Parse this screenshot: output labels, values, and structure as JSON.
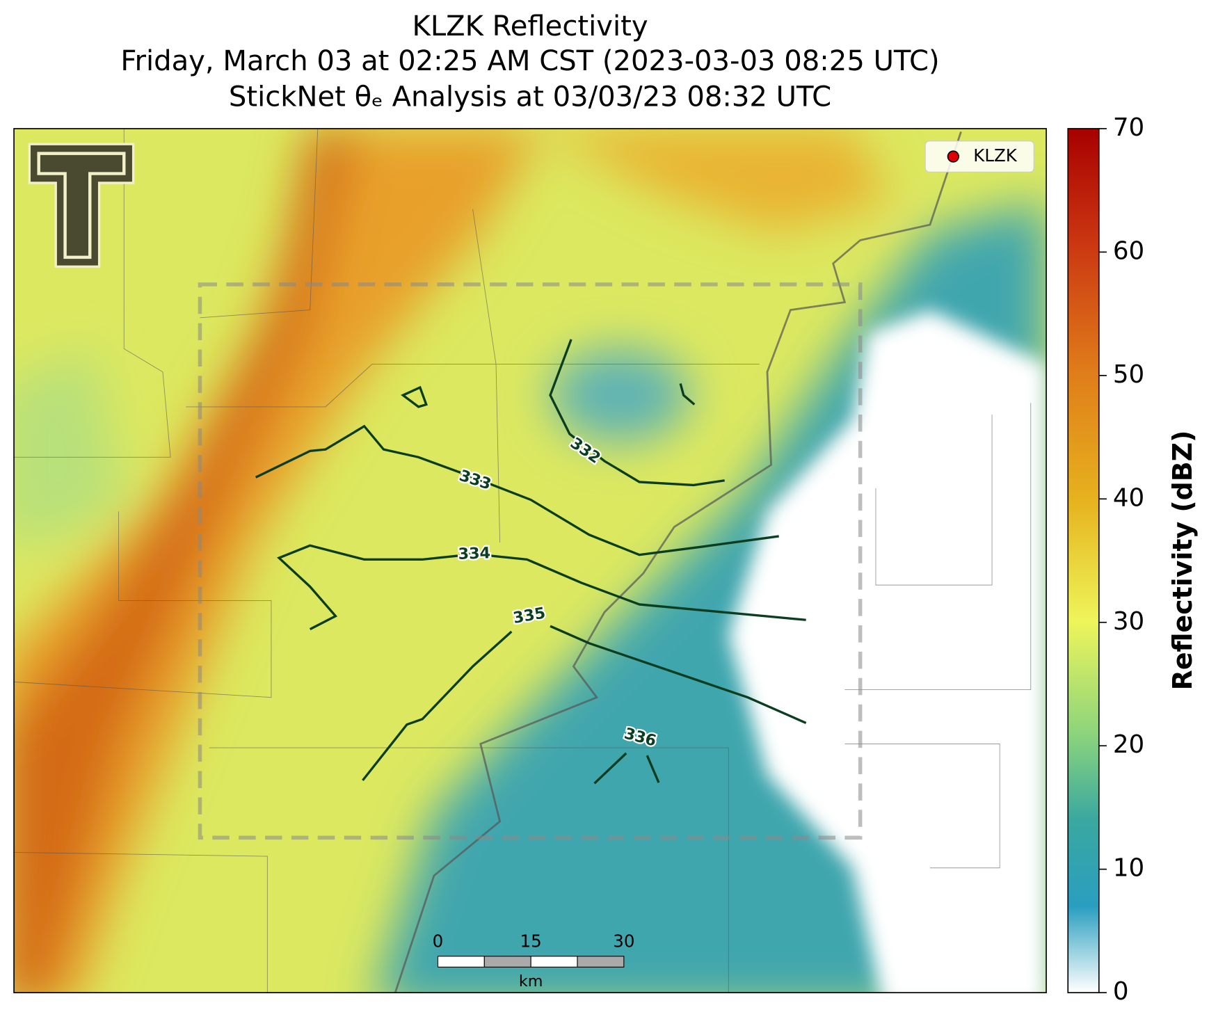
{
  "title": {
    "line1": "KLZK Reflectivity",
    "line2": "Friday, March 03 at 02:25 AM CST (2023-03-03 08:25 UTC)",
    "line3": "StickNet θₑ Analysis at 03/03/23 08:32 UTC"
  },
  "legend": {
    "label": "KLZK"
  },
  "contours": [
    {
      "level": 332
    },
    {
      "level": 333
    },
    {
      "level": 334
    },
    {
      "level": 335
    },
    {
      "level": 336
    }
  ],
  "scale_bar": {
    "ticks": [
      0,
      15,
      30
    ],
    "unit": "km"
  },
  "colorbar": {
    "label": "Reflectivity (dBZ)",
    "lim": [
      0,
      70
    ],
    "ticks": [
      0,
      10,
      20,
      30,
      40,
      50,
      60,
      70
    ]
  }
}
